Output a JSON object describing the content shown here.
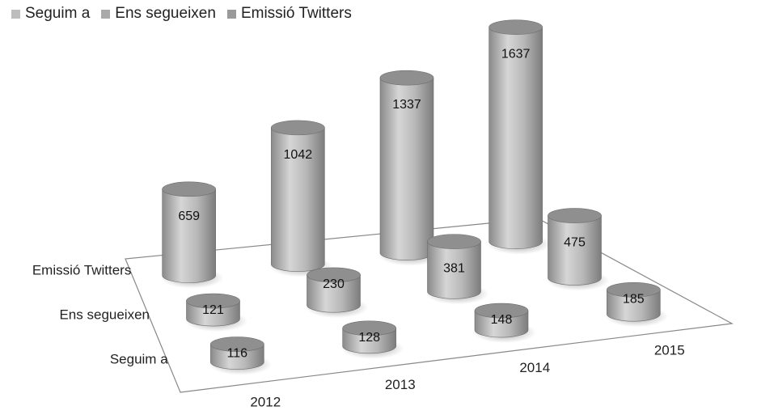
{
  "chart_data": {
    "type": "bar",
    "style": "3d-cylinder",
    "categories": [
      "2012",
      "2013",
      "2014",
      "2015"
    ],
    "series": [
      {
        "name": "Seguim a",
        "values": [
          116,
          128,
          148,
          185
        ]
      },
      {
        "name": "Ens segueixen",
        "values": [
          121,
          230,
          381,
          475
        ]
      },
      {
        "name": "Emissió Twitters",
        "values": [
          659,
          1042,
          1337,
          1637
        ]
      }
    ],
    "depth_labels": [
      "Seguim a",
      "Ens segueixen",
      "Emissió Twitters"
    ],
    "legend": {
      "placement": "top-left"
    },
    "grid": false,
    "ylim": [
      0,
      1637
    ]
  },
  "colors": {
    "Seguim a": "#bdbdbd",
    "Ens segueixen": "#a9a9a9",
    "Emissió Twitters": "#9a9a9a",
    "floor_line": "#888888"
  }
}
